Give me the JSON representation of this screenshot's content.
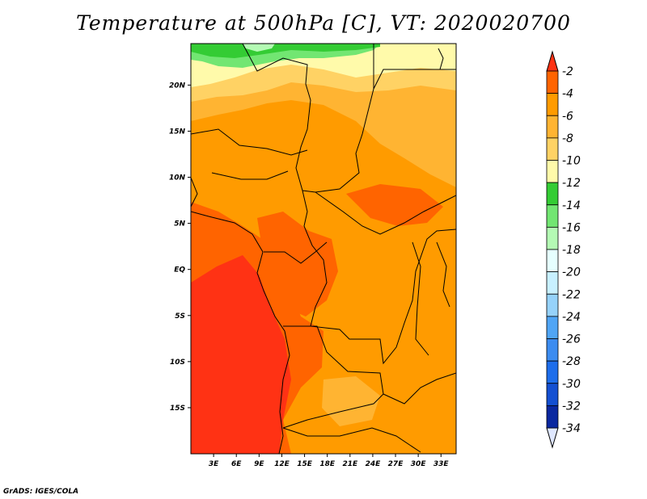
{
  "title": "Temperature at 500hPa [C], VT: 2020020700",
  "credit": "GrADS: IGES/COLA",
  "map": {
    "lon_range": [
      0,
      35
    ],
    "lat_range": [
      -20,
      24.5
    ],
    "lat_ticks": [
      {
        "value": 20,
        "label": "20N"
      },
      {
        "value": 15,
        "label": "15N"
      },
      {
        "value": 10,
        "label": "10N"
      },
      {
        "value": 5,
        "label": "5N"
      },
      {
        "value": 0,
        "label": "EQ"
      },
      {
        "value": -5,
        "label": "5S"
      },
      {
        "value": -10,
        "label": "10S"
      },
      {
        "value": -15,
        "label": "15S"
      }
    ],
    "lon_ticks": [
      {
        "value": 3,
        "label": "3E"
      },
      {
        "value": 6,
        "label": "6E"
      },
      {
        "value": 9,
        "label": "9E"
      },
      {
        "value": 12,
        "label": "12E"
      },
      {
        "value": 15,
        "label": "15E"
      },
      {
        "value": 18,
        "label": "18E"
      },
      {
        "value": 21,
        "label": "21E"
      },
      {
        "value": 24,
        "label": "24E"
      },
      {
        "value": 27,
        "label": "27E"
      },
      {
        "value": 30,
        "label": "30E"
      },
      {
        "value": 33,
        "label": "33E"
      }
    ]
  },
  "colorbar": {
    "levels": [
      "-2",
      "-4",
      "-6",
      "-8",
      "-10",
      "-12",
      "-14",
      "-16",
      "-18",
      "-20",
      "-22",
      "-24",
      "-26",
      "-28",
      "-30",
      "-32",
      "-34"
    ],
    "colors": [
      "#ff3214",
      "#ff6400",
      "#ff9b00",
      "#ffb432",
      "#ffd264",
      "#fffaaa",
      "#34cc34",
      "#72e672",
      "#b4fab4",
      "#e6ffff",
      "#c8f0ff",
      "#96d2fa",
      "#50a5f5",
      "#3c8cf0",
      "#1e6eeb",
      "#1450d2",
      "#0a28a0",
      "#000064"
    ],
    "top_arrow_color": "#ff3214",
    "bottom_arrow_color": "#dfe7ff"
  }
}
